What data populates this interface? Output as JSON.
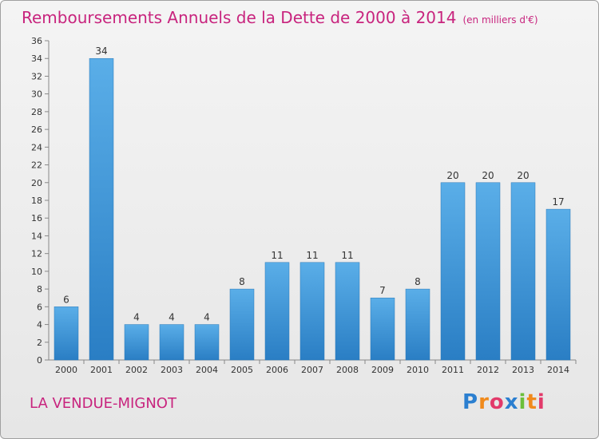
{
  "header": {
    "title": "Remboursements Annuels de la Dette de 2000 à 2014",
    "unit": "(en milliers d'€)"
  },
  "footer": {
    "commune": "LA VENDUE-MIGNOT",
    "logo": "Proxiti"
  },
  "colors": {
    "title": "#c8247e",
    "bar_light": "#5aaee8",
    "bar_dark": "#2a7ec4"
  },
  "chart_data": {
    "type": "bar",
    "title": "Remboursements Annuels de la Dette de 2000 à 2014",
    "xlabel": "",
    "ylabel": "",
    "categories": [
      "2000",
      "2001",
      "2002",
      "2003",
      "2004",
      "2005",
      "2006",
      "2007",
      "2008",
      "2009",
      "2010",
      "2011",
      "2012",
      "2013",
      "2014"
    ],
    "values": [
      6,
      34,
      4,
      4,
      4,
      8,
      11,
      11,
      11,
      7,
      8,
      20,
      20,
      20,
      17
    ],
    "ylim": [
      0,
      36
    ],
    "yticks": [
      0,
      2,
      4,
      6,
      8,
      10,
      12,
      14,
      16,
      18,
      20,
      22,
      24,
      26,
      28,
      30,
      32,
      34,
      36
    ],
    "grid": false,
    "data_labels": true
  }
}
